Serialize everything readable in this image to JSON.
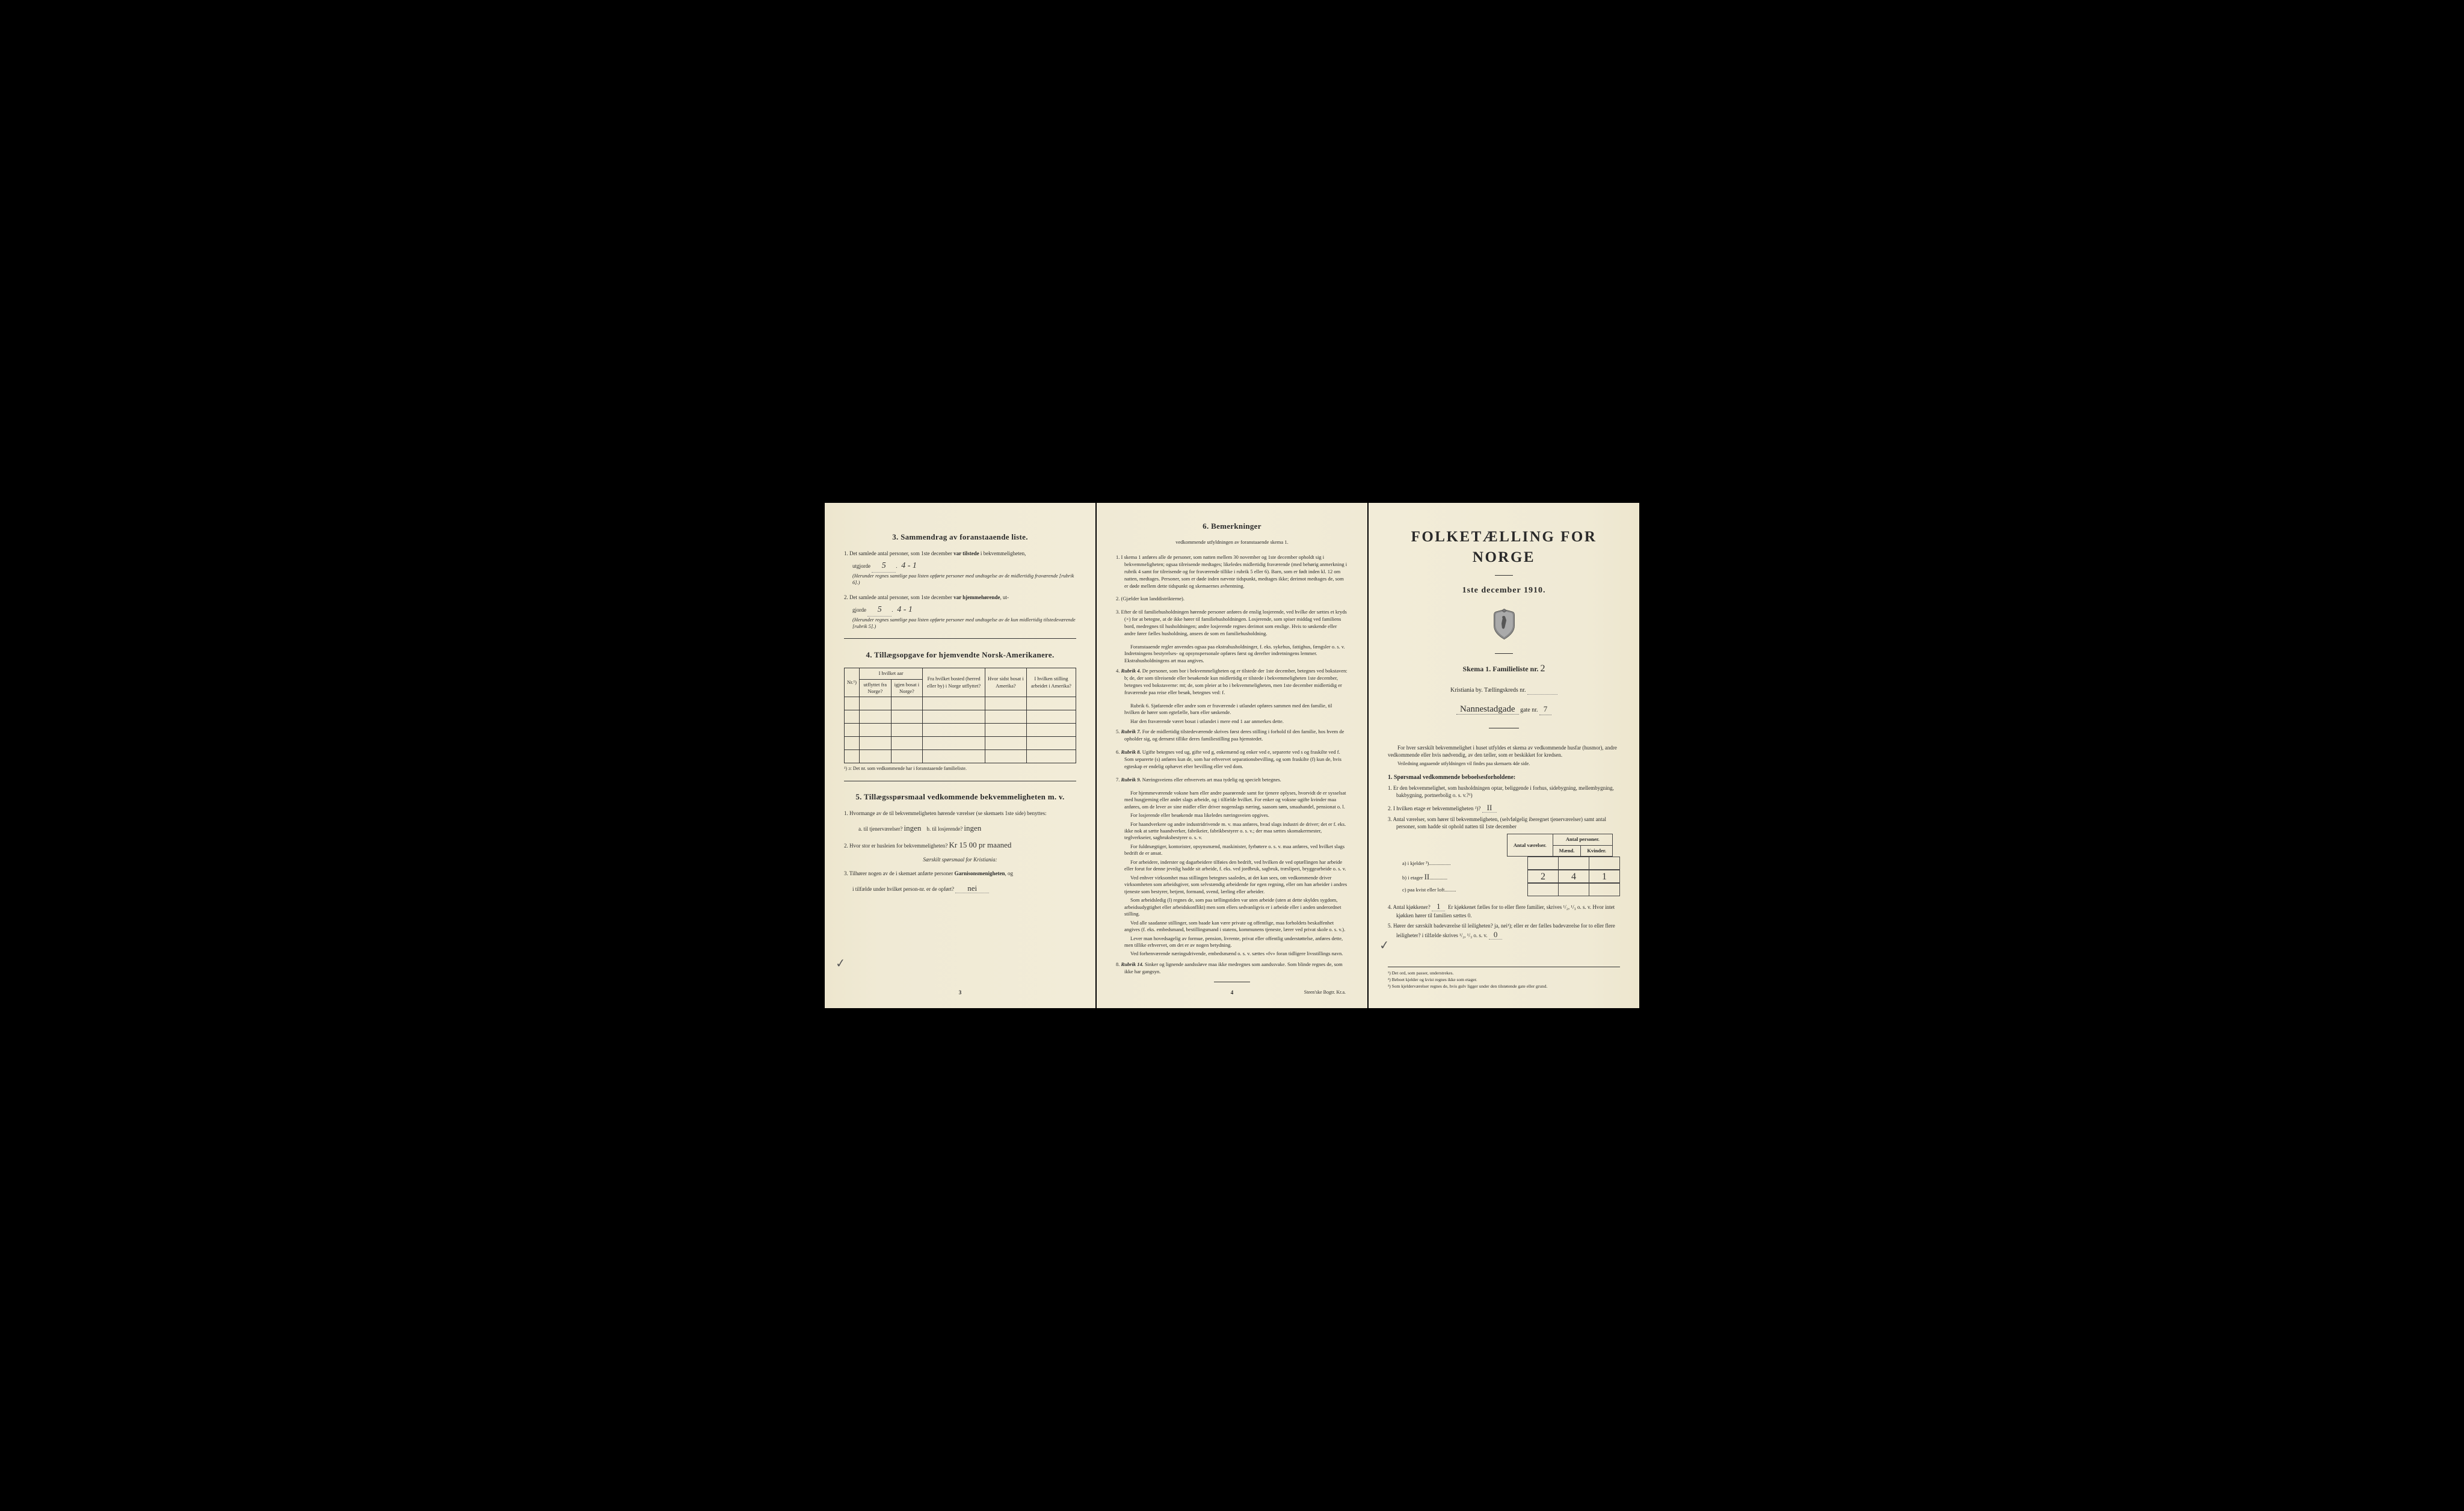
{
  "page1": {
    "sec3": {
      "title": "3.  Sammendrag av foranstaaende liste.",
      "item1_a": "1.  Det samlede antal personer, som 1ste december ",
      "item1_b": "var tilstede",
      "item1_c": " i bekvemmeligheten,",
      "utgjorde": "utgjorde",
      "hw1_a": "5",
      "hw1_b": "4 - 1",
      "paren1": "(Herunder regnes samtlige paa listen opførte personer med undtagelse av de midlertidig fraværende [rubrik 6].)",
      "item2_a": "2.  Det samlede antal personer, som 1ste december ",
      "item2_b": "var hjemmehørende",
      "item2_c": ", ut-",
      "utgjorde2": "gjorde",
      "hw2_a": "5",
      "hw2_b": "4 - 1",
      "paren2": "(Herunder regnes samtlige paa listen opførte personer med undtagelse av de kun midlertidig tilstedeværende [rubrik 5].)"
    },
    "sec4": {
      "title": "4.  Tillægsopgave for hjemvendte Norsk-Amerikanere.",
      "th_nr": "Nr.¹)",
      "th_hvilket_aar": "I hvilket aar",
      "th_utflyttet": "utflyttet fra Norge?",
      "th_igjen": "igjen bosat i Norge?",
      "th_bosted": "Fra hvilket bosted (herred eller by) i Norge utflyttet?",
      "th_hvor": "Hvor sidst bosat i Amerika?",
      "th_stilling": "I hvilken stilling arbeidet i Amerika?",
      "footnote": "¹) ɔ: Det nr. som vedkommende har i foranstaaende familieliste."
    },
    "sec5": {
      "title": "5.  Tillægsspørsmaal vedkommende bekvemmeligheten m. v.",
      "q1": "1.  Hvormange av de til bekvemmeligheten hørende værelser (se skemaets 1ste side) benyttes:",
      "q1a": "a.  til tjenerværelser?",
      "q1a_hw": "ingen",
      "q1b": "b.  til losjerende?",
      "q1b_hw": "ingen",
      "q2": "2.  Hvor stor er husleien for bekvemmeligheten?",
      "q2_hw": "Kr 15 00 pr maaned",
      "saerskilt": "Særskilt spørsmaal for Kristiania:",
      "q3a": "3.  Tilhører nogen av de i skemaet anførte personer ",
      "q3b": "Garnisonsmenigheten",
      "q3c": ", og",
      "q3d": "i tilfælde under hvilket person-nr. er de opført?",
      "q3_hw": "nei"
    },
    "pagenum": "3"
  },
  "page2": {
    "title": "6.  Bemerkninger",
    "subtitle": "vedkommende utfyldningen av foranstaaende skema 1.",
    "items": [
      {
        "num": "1.",
        "text": "I skema 1 anføres alle de personer, som natten mellem 30 november og 1ste december opholdt sig i bekvemmeligheten; ogsaa tilreisende medtages; likeledes midlertidig fraværende (med behørig anmerkning i rubrik 4 samt for tilreisende og for fraværende tillike i rubrik 5 eller 6). Barn, som er født inden kl. 12 om natten, medtages. Personer, som er døde inden nævnte tidspunkt, medtages ikke; derimot medtages de, som er døde mellem dette tidspunkt og skemaernes avhentning."
      },
      {
        "num": "2.",
        "text": "(Gjælder kun landdistrikterne)."
      },
      {
        "num": "3.",
        "text": "Efter de til familiehusholdningen hørende personer anføres de enslig losjerende, ved hvilke der sættes et kryds (×) for at betegne, at de ikke hører til familiehusholdningen. Losjerende, som spiser middag ved familiens bord, medregnes til husholdningen; andre losjerende regnes derimot som enslige. Hvis to søskende eller andre fører fælles husholdning, ansees de som en familiehusholdning.",
        "para2": "Foranstaaende regler anvendes ogsaa paa ekstrahusholdninger, f. eks. sykehus, fattighus, fængsler o. s. v. Indretningens bestyrelses- og opsynspersonale opføres først og derefter indretningens lemmer. Ekstrahusholdningens art maa angives."
      },
      {
        "num": "4.",
        "lead": "Rubrik 4.",
        "text": " De personer, som bor i bekvemmeligheten og er tilstede der 1ste december, betegnes ved bokstaven: b; de, der som tilreisende eller besøkende kun midlertidig er tilstede i bekvemmeligheten 1ste december, betegnes ved bokstaverne: mt; de, som pleier at bo i bekvemmeligheten, men 1ste december midlertidig er fraværende paa reise eller besøk, betegnes ved: f.",
        "para2": "Rubrik 6. Sjøfarende eller andre som er fraværende i utlandet opføres sammen med den familie, til hvilken de hører som egtefælle, barn eller søskende.",
        "para3": "Har den fraværende været bosat i utlandet i mere end 1 aar anmerkes dette."
      },
      {
        "num": "5.",
        "lead": "Rubrik 7.",
        "text": " For de midlertidig tilstedeværende skrives først deres stilling i forhold til den familie, hos hvem de opholder sig, og dernæst tillike deres familiestilling paa hjemstedet."
      },
      {
        "num": "6.",
        "lead": "Rubrik 8.",
        "text": " Ugifte betegnes ved ug, gifte ved g, enkemænd og enker ved e, separerte ved s og fraskilte ved f. Som separerte (s) anføres kun de, som har erhvervet separationsbevilling, og som fraskilte (f) kun de, hvis egteskap er endelig ophævet efter bevilling eller ved dom."
      },
      {
        "num": "7.",
        "lead": "Rubrik 9.",
        "text": " Næringsveiens eller erhvervets art maa tydelig og specielt betegnes.",
        "paras": [
          "For hjemmeværende voksne barn eller andre paarørende samt for tjenere oplyses, hvorvidt de er sysselsat med husgjerning eller andet slags arbeide, og i tilfælde hvilket. For enker og voksne ugifte kvinder maa anføres, om de lever av sine midler eller driver nogenslags næring, saasom søm, smaahandel, pensionat o. l.",
          "For losjerende eller besøkende maa likeledes næringsveien opgives.",
          "For haandverkere og andre industridrivende m. v. maa anføres, hvad slags industri de driver; det er f. eks. ikke nok at sætte haandverker, fabrikeier, fabrikbestyrer o. s. v.; der maa sættes skomakermester, teglverkseier, sagbruksbestyrer o. s. v.",
          "For fuldmægtiger, kontorister, opsynsmænd, maskinister, fyrbøtere o. s. v. maa anføres, ved hvilket slags bedrift de er ansat.",
          "For arbeidere, inderster og dagarbeidere tilføies den bedrift, ved hvilken de ved optællingen har arbeide eller forut for denne jevnlig hadde sit arbeide, f. eks. ved jordbruk, sagbruk, træsliperi, bryggearbeide o. s. v.",
          "Ved enhver virksomhet maa stillingen betegnes saaledes, at det kan sees, om vedkommende driver virksomheten som arbeidsgiver, som selvstændig arbeidende for egen regning, eller om han arbeider i andres tjeneste som bestyrer, betjent, formand, svend, lærling eller arbeider.",
          "Som arbeidsledig (l) regnes de, som paa tællingstiden var uten arbeide (uten at dette skyldes sygdom, arbeidsudygtighet eller arbeidskonflikt) men som ellers sedvanligvis er i arbeide eller i anden underordnet stilling.",
          "Ved alle saadanne stillinger, som baade kan være private og offentlige, maa forholdets beskaffenhet angives (f. eks. embedsmand, bestillingsmand i statens, kommunens tjeneste, lærer ved privat skole o. s. v.).",
          "Lever man hovedsagelig av formue, pension, livrente, privat eller offentlig understøttelse, anføres dette, men tillike erhvervet, om det er av nogen betydning.",
          "Ved forhenværende næringsdrivende, embedsmænd o. s. v. sættes «fv» foran tidligere livsstillings navn."
        ]
      },
      {
        "num": "8.",
        "lead": "Rubrik 14.",
        "text": " Sinker og lignende aandssløve maa ikke medregnes som aandssvake. Som blinde regnes de, som ikke har gangsyn."
      }
    ],
    "pagenum": "4",
    "imprint": "Steen'ske Bogtr. Kr.a."
  },
  "page3": {
    "main_title": "FOLKETÆLLING FOR NORGE",
    "main_date": "1ste december 1910.",
    "skema": "Skema 1.  Familieliste nr.",
    "skema_hw": "2",
    "kristiania": "Kristiania by.  Tællingskreds nr.",
    "gate_hw": "Nannestadgade",
    "gate_label": "gate nr.",
    "gate_nr_hw": "7",
    "intro": "For hver særskilt bekvemmelighet i huset utfyldes et skema av vedkommende husfar (husmor), andre vedkommende eller hvis nødvendig, av den tæller, som er beskikket for kredsen.",
    "veiled": "Veiledning angaaende utfyldningen vil findes paa skemaets 4de side.",
    "sp_title": "1.  Spørsmaal vedkommende beboelsesforholdene:",
    "q1": "1.  Er den bekvemmelighet, som husholdningen optar, beliggende i forhus, sidebygning, mellembygning, bakbygning, portnerbolig o. s. v.?¹)",
    "q2": "2.  I hvilken etage er bekvemmeligheten ²)?",
    "q2_hw": "II",
    "q3": "3.  Antal værelser, som hører til bekvemmeligheten, (selvfølgelig iberegnet tjenerværelser) samt antal personer, som hadde sit ophold natten til 1ste december",
    "tbl": {
      "th1": "Antal værelser.",
      "th2": "Antal personer.",
      "th2a": "Mænd.",
      "th2b": "Kvinder.",
      "row_a": "a) i kjelder ³)",
      "row_b": "b) i etager",
      "row_b_hw": "II",
      "row_b_v1": "2",
      "row_b_v2": "4",
      "row_b_v3": "1",
      "row_c": "c) paa kvist eller loft"
    },
    "q4": "4.  Antal kjøkkener?",
    "q4_hw": "1",
    "q4_b": "Er kjøkkenet fælles for to eller flere familier, skrives ¹/₂, ¹/₃ o. s. v. Hvor intet kjøkken hører til familien sættes 0.",
    "q5": "5.  Hører der særskilt badeværelse til leiligheten? ja, nei¹); eller er der fælles badeværelse for to eller flere leiligheter? i tilfælde skrives ¹/₂, ¹/₃ o. s. v.",
    "q5_hw": "0",
    "fn1": "¹) Det ord, som passer, understrekes.",
    "fn2": "²) Beboet kjelder og kvist regnes ikke som etager.",
    "fn3": "³) Som kjelderværelser regnes de, hvis gulv ligger under den tilstøtende gate eller grund."
  },
  "colors": {
    "paper": "#f0ead5",
    "ink": "#2a2a2a",
    "border": "#333333"
  }
}
